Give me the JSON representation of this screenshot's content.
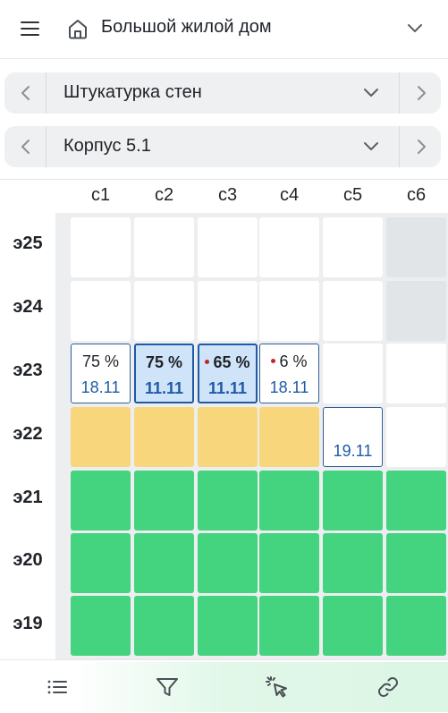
{
  "header": {
    "menu_icon": "hamburger-menu-icon",
    "home_icon": "home-icon",
    "title": "Большой жилой дом",
    "dropdown_icon": "chevron-down-icon"
  },
  "work_selector": {
    "label": "Штукатурка стен"
  },
  "building_selector": {
    "label": "Корпус 5.1"
  },
  "grid": {
    "columns": [
      "с1",
      "с2",
      "с3",
      "с4",
      "с5",
      "с6"
    ],
    "rows": [
      "э25",
      "э24",
      "э23",
      "э22",
      "э21",
      "э20",
      "э19"
    ],
    "cells": {
      "e23_c1": {
        "percent": "75 %",
        "date": "18.11"
      },
      "e23_c2": {
        "percent": "75 %",
        "date": "11.11"
      },
      "e23_c3": {
        "percent": "65 %",
        "date": "11.11"
      },
      "e23_c4": {
        "percent": "6 %",
        "date": "18.11"
      },
      "e22_c5": {
        "date": "19.11"
      }
    },
    "colors": {
      "completed": "#44d37f",
      "in_progress": "#f8d77c",
      "unavailable": "#e2e5e8",
      "selected": "#cfe3f9",
      "accent": "#1e5aa8",
      "warning_dot": "#c0282d"
    }
  },
  "bottom_bar": {
    "icons": [
      "list-icon",
      "filter-icon",
      "pointer-select-icon",
      "link-icon"
    ]
  }
}
